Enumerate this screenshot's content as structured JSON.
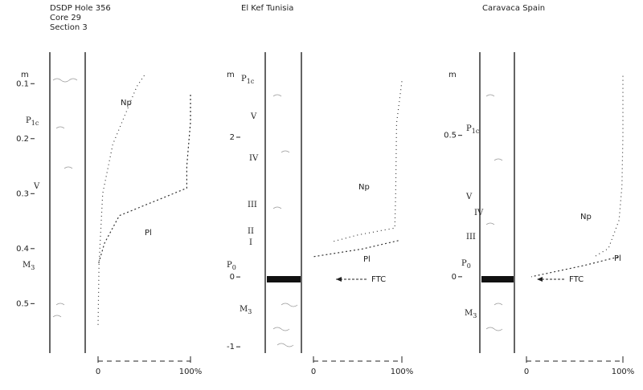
{
  "panels": [
    {
      "title": [
        "DSDP  Hole  356",
        "Core   29",
        "Section   3"
      ],
      "depth_unit": "m",
      "depth_lim": [
        0.05,
        0.59
      ],
      "depth_ticks": [
        0.1,
        0.2,
        0.3,
        0.4,
        0.5
      ],
      "xlim": [
        0,
        100
      ],
      "xticks": [
        0,
        {
          "value": 100,
          "label": "100%"
        }
      ],
      "zones": [
        {
          "main": "P",
          "sub": "1c"
        },
        {
          "main": "V"
        },
        {
          "main": "M",
          "sub": "3"
        }
      ],
      "curves": [
        {
          "name": "Np",
          "depth": [
            0.085,
            0.105,
            0.21,
            0.3,
            0.43,
            0.54
          ],
          "percent": [
            50,
            42,
            16,
            5,
            1,
            0
          ]
        },
        {
          "name": "Pl",
          "depth": [
            0.12,
            0.17,
            0.25,
            0.29,
            0.34,
            0.39,
            0.43
          ],
          "percent": [
            100,
            100,
            96,
            96,
            23,
            7,
            0
          ]
        }
      ]
    },
    {
      "title": [
        "El  Kef    Tunisia"
      ],
      "depth_unit": "m",
      "depth_lim": [
        3.16,
        -1.09
      ],
      "depth_ticks": [
        2,
        0,
        -1
      ],
      "xlim": [
        0,
        100
      ],
      "xticks": [
        0,
        {
          "value": 100,
          "label": "100%"
        }
      ],
      "zones": [
        {
          "main": "P",
          "sub": "1c"
        },
        {
          "main": "V"
        },
        {
          "main": "IV"
        },
        {
          "main": "III"
        },
        {
          "main": "II"
        },
        {
          "main": "I"
        },
        {
          "main": "P",
          "sub": "0"
        },
        {
          "main": "M",
          "sub": "3"
        }
      ],
      "boundary": "FTC",
      "curves": [
        {
          "name": "Np",
          "depth": [
            2.8,
            2.2,
            1.2,
            0.7,
            0.6,
            0.5
          ],
          "percent": [
            100,
            94,
            93,
            92,
            50,
            20
          ]
        },
        {
          "name": "Pl",
          "depth": [
            0.52,
            0.4,
            0.29
          ],
          "percent": [
            96,
            55,
            0
          ]
        }
      ]
    },
    {
      "title": [
        "Caravaca    Spain"
      ],
      "depth_unit": "m",
      "depth_lim": [
        0.78,
        -0.27
      ],
      "depth_ticks": [
        0.5,
        0
      ],
      "xlim": [
        0,
        100
      ],
      "xticks": [
        0,
        {
          "value": 100,
          "label": "100%"
        }
      ],
      "zones": [
        {
          "main": "P",
          "sub": "1c"
        },
        {
          "main": "V"
        },
        {
          "main": "IV"
        },
        {
          "main": "III"
        },
        {
          "main": "P",
          "sub": "0"
        },
        {
          "main": "M",
          "sub": "3"
        }
      ],
      "boundary": "FTC",
      "curves": [
        {
          "name": "Np",
          "depth": [
            0.71,
            0.5,
            0.32,
            0.2,
            0.1,
            0.07
          ],
          "percent": [
            100,
            100,
            99,
            96,
            85,
            70
          ]
        },
        {
          "name": "Pl",
          "depth": [
            0.07,
            0.04,
            0.0
          ],
          "percent": [
            95,
            60,
            5
          ]
        }
      ]
    }
  ]
}
